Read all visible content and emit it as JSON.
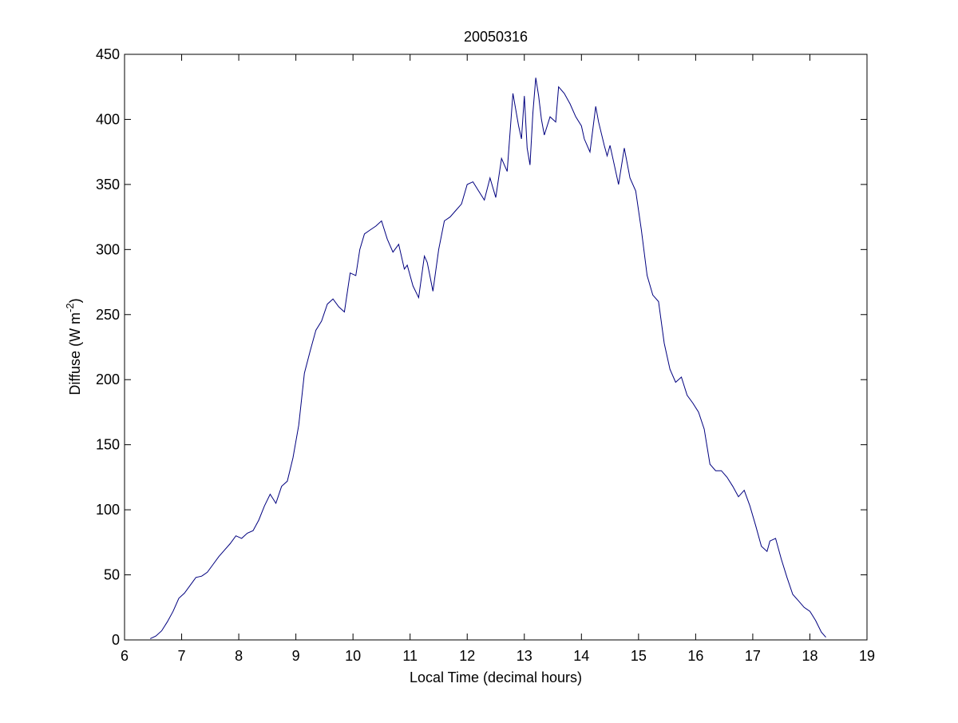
{
  "chart_data": {
    "type": "line",
    "title": "20050316",
    "xlabel": "Local Time (decimal hours)",
    "ylabel": {
      "main": "Diffuse (W m",
      "superscript": "-2",
      "suffix": ")"
    },
    "xlim": [
      6,
      19
    ],
    "ylim": [
      0,
      450
    ],
    "xticks": [
      6,
      7,
      8,
      9,
      10,
      11,
      12,
      13,
      14,
      15,
      16,
      17,
      18,
      19
    ],
    "yticks": [
      0,
      50,
      100,
      150,
      200,
      250,
      300,
      350,
      400,
      450
    ],
    "grid": false,
    "legend": "none",
    "line_color": "#00007f",
    "series": [
      {
        "x": [
          6.45,
          6.55,
          6.65,
          6.75,
          6.85,
          6.95,
          7.05,
          7.15,
          7.25,
          7.35,
          7.45,
          7.55,
          7.65,
          7.75,
          7.85,
          7.95,
          8.05,
          8.15,
          8.25,
          8.35,
          8.45,
          8.55,
          8.65,
          8.75,
          8.85,
          8.95,
          9.05,
          9.15,
          9.25,
          9.35,
          9.45,
          9.55,
          9.65,
          9.75,
          9.85,
          9.95,
          10.05,
          10.12,
          10.2,
          10.3,
          10.4,
          10.5,
          10.6,
          10.7,
          10.8,
          10.9,
          10.95,
          11.05,
          11.15,
          11.25,
          11.3,
          11.4,
          11.5,
          11.6,
          11.7,
          11.8,
          11.9,
          12.0,
          12.1,
          12.2,
          12.3,
          12.4,
          12.5,
          12.6,
          12.7,
          12.8,
          12.9,
          12.95,
          13.0,
          13.05,
          13.1,
          13.15,
          13.2,
          13.25,
          13.3,
          13.35,
          13.45,
          13.55,
          13.6,
          13.7,
          13.8,
          13.9,
          14.0,
          14.05,
          14.15,
          14.25,
          14.3,
          14.4,
          14.45,
          14.5,
          14.55,
          14.65,
          14.75,
          14.85,
          14.95,
          15.05,
          15.15,
          15.25,
          15.35,
          15.45,
          15.55,
          15.65,
          15.75,
          15.85,
          15.95,
          16.05,
          16.15,
          16.25,
          16.35,
          16.45,
          16.55,
          16.65,
          16.75,
          16.85,
          16.95,
          17.05,
          17.15,
          17.25,
          17.3,
          17.4,
          17.5,
          17.6,
          17.7,
          17.8,
          17.9,
          18.0,
          18.1,
          18.2,
          18.28
        ],
        "y": [
          1,
          3,
          7,
          14,
          22,
          32,
          36,
          42,
          48,
          49,
          52,
          58,
          64,
          69,
          74,
          80,
          78,
          82,
          84,
          92,
          103,
          112,
          105,
          118,
          122,
          140,
          165,
          205,
          222,
          238,
          245,
          258,
          262,
          256,
          252,
          282,
          280,
          300,
          312,
          315,
          318,
          322,
          308,
          298,
          304,
          285,
          288,
          272,
          263,
          295,
          290,
          268,
          300,
          322,
          325,
          330,
          335,
          350,
          352,
          345,
          338,
          355,
          340,
          370,
          360,
          420,
          395,
          385,
          418,
          378,
          365,
          405,
          432,
          418,
          400,
          388,
          402,
          398,
          425,
          420,
          412,
          402,
          395,
          385,
          375,
          410,
          398,
          380,
          372,
          380,
          370,
          350,
          378,
          355,
          345,
          315,
          280,
          265,
          260,
          228,
          208,
          198,
          202,
          188,
          182,
          175,
          162,
          135,
          130,
          130,
          125,
          118,
          110,
          115,
          103,
          88,
          72,
          68,
          76,
          78,
          62,
          48,
          35,
          30,
          25,
          22,
          15,
          6,
          2
        ]
      }
    ]
  }
}
